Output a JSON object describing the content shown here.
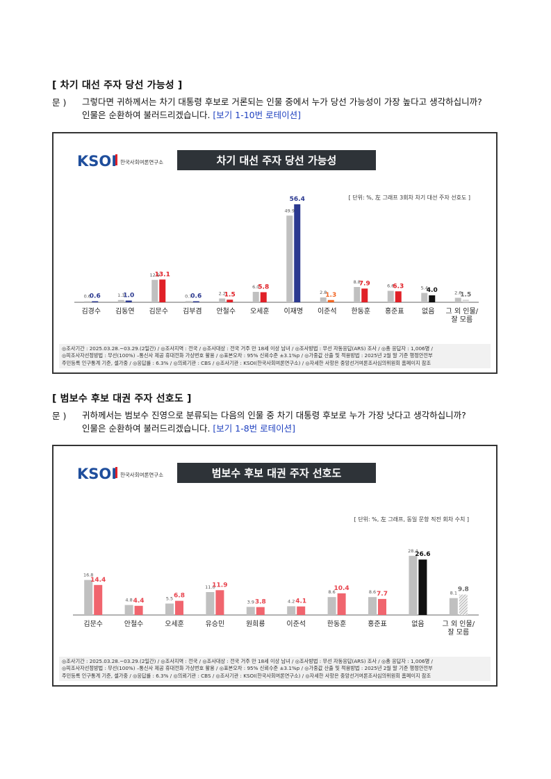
{
  "sections": [
    {
      "title": "[ 차기 대선 주자 당선 가능성 ]",
      "q_label": "문 )",
      "q_line1": "그렇다면 귀하께서는 차기 대통령 후보로 거론되는 인물 중에서 누가 당선 가능성이 가장 높다고 생각하십니까?",
      "q_line2": "인물은 순환하여 불러드리겠습니다.",
      "q_note": "[보기 1-10번 로테이션]"
    },
    {
      "title": "[ 범보수 후보 대권 주자 선호도 ]",
      "q_label": "문 )",
      "q_line1": "귀하께서는 범보수 진영으로 분류되는 다음의 인물 중 차기 대통령 후보로 누가 가장 낫다고 생각하십니까?",
      "q_line2": "인물은 순환하여 불러드리겠습니다.",
      "q_note": "[보기 1-8번 로테이션]"
    }
  ],
  "logo": {
    "text": "KSOI",
    "sub": "한국사회여론연구소"
  },
  "footer": {
    "line1": "◎조사기간 : 2025.03.28.~03.29.(2일간) / ◎조사지역 : 전국 / ◎조사대상 : 전국 거주 만 18세 이상 남녀 / ◎조사방법 : 무선 자동응답(ARS) 조사 / ◎총 응답자 : 1,006명 /",
    "line2": "◎피조사자선정방법 : 무선(100%) –통신사 제공 휴대전화 가상번호 활용 / ◎표본오차 : 95% 신뢰수준 ±3.1%p / ◎가중값 산출 및 적용방법 : 2025년 2월 말 기준 행정안전부",
    "line3": "주민등록 인구통계 기준, 셀가중 / ◎응답률 : 6.3% / ◎의뢰기관 : CBS / ◎조사기관 : KSOI(한국사회여론연구소) / ◎자세한 사항은 중앙선거여론조사심의위원회 홈페이지 참조"
  },
  "chart_data": [
    {
      "type": "bar",
      "title": "차기 대선 주자 당선 가능성",
      "unit_note": "[ 단위: %, 左 그래프  3회차 차기 대선 주자 선호도 ]",
      "categories": [
        "김경수",
        "김동연",
        "김문수",
        "김부겸",
        "안철수",
        "오세훈",
        "이재명",
        "이준석",
        "한동훈",
        "홍준표",
        "없음",
        "그 외 인물/잘 모름"
      ],
      "series": [
        {
          "values": [
            0.6,
            1.3,
            12.9,
            0.7,
            2.2,
            6.0,
            49.9,
            2.8,
            8.8,
            6.6,
            5.4,
            2.6
          ]
        },
        {
          "values": [
            0.6,
            1.0,
            13.1,
            0.6,
            1.5,
            5.8,
            56.4,
            1.3,
            7.9,
            6.3,
            4.0,
            1.5
          ]
        }
      ],
      "colors": {
        "prev": "#c0c0c0",
        "current": [
          "#2b3990",
          "#2b3990",
          "#e02027",
          "#2b3990",
          "#e02027",
          "#e02027",
          "#2b3990",
          "#f26522",
          "#e02027",
          "#e02027",
          "#111111",
          "#d8d8d8"
        ]
      },
      "ylim": [
        0,
        60
      ]
    },
    {
      "type": "bar",
      "title": "범보수 후보 대권 주자 선호도",
      "unit_note": "[ 단위: %, 左 그래프, 동일 문항 직전 회차 수치 ]",
      "categories": [
        "김문수",
        "안철수",
        "오세훈",
        "유승민",
        "원희룡",
        "이준석",
        "한동훈",
        "홍준표",
        "없음",
        "그 외 인물/잘 모름"
      ],
      "series": [
        {
          "values": [
            16.8,
            4.8,
            5.5,
            11.0,
            3.9,
            4.2,
            8.6,
            8.6,
            28.4,
            8.1
          ]
        },
        {
          "values": [
            14.4,
            4.4,
            6.8,
            11.9,
            3.8,
            4.1,
            10.4,
            7.7,
            26.6,
            9.8
          ]
        }
      ],
      "colors": {
        "prev": "#c0c0c0",
        "current": [
          "#f0656e",
          "#f0656e",
          "#f0656e",
          "#f0656e",
          "#f0656e",
          "#f0656e",
          "#f0656e",
          "#f0656e",
          "#111111",
          "#bdbdbd"
        ]
      },
      "ylim": [
        0,
        30
      ]
    }
  ]
}
